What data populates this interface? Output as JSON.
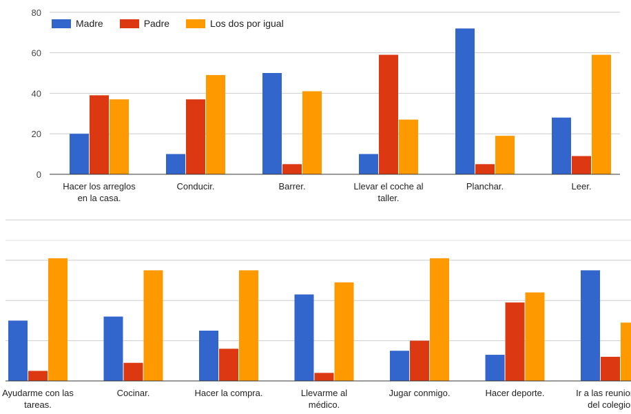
{
  "chart_data": [
    {
      "type": "bar",
      "categories": [
        [
          "Hacer los arreglos",
          "en la casa."
        ],
        [
          "Conducir."
        ],
        [
          "Barrer."
        ],
        [
          "Llevar el coche al",
          "taller."
        ],
        [
          "Planchar."
        ],
        [
          "Leer."
        ]
      ],
      "series": [
        {
          "name": "Madre",
          "color": "#3366cc",
          "values": [
            20,
            10,
            50,
            10,
            72,
            28
          ]
        },
        {
          "name": "Padre",
          "color": "#dc3912",
          "values": [
            39,
            37,
            5,
            59,
            5,
            9
          ]
        },
        {
          "name": "Los dos por igual",
          "color": "#ff9900",
          "values": [
            37,
            49,
            41,
            27,
            19,
            59
          ]
        }
      ],
      "ylim": [
        0,
        80
      ],
      "yticks": [
        0,
        20,
        40,
        60,
        80
      ],
      "legend": "top-left",
      "grid": true
    },
    {
      "type": "bar",
      "categories": [
        [
          "Ayudarme con las",
          "tareas."
        ],
        [
          "Cocinar."
        ],
        [
          "Hacer la compra."
        ],
        [
          "Llevarme al",
          "médico."
        ],
        [
          "Jugar conmigo."
        ],
        [
          "Hacer deporte."
        ],
        [
          "Ir a las reuniones",
          "del colegio."
        ]
      ],
      "series": [
        {
          "name": "Madre",
          "color": "#3366cc",
          "values": [
            30,
            32,
            25,
            43,
            15,
            13,
            55
          ]
        },
        {
          "name": "Padre",
          "color": "#dc3912",
          "values": [
            5,
            9,
            16,
            4,
            20,
            39,
            12
          ]
        },
        {
          "name": "Los dos por igual",
          "color": "#ff9900",
          "values": [
            61,
            55,
            55,
            49,
            61,
            44,
            29
          ]
        }
      ],
      "ylim": [
        0,
        80
      ],
      "grid": true
    }
  ]
}
